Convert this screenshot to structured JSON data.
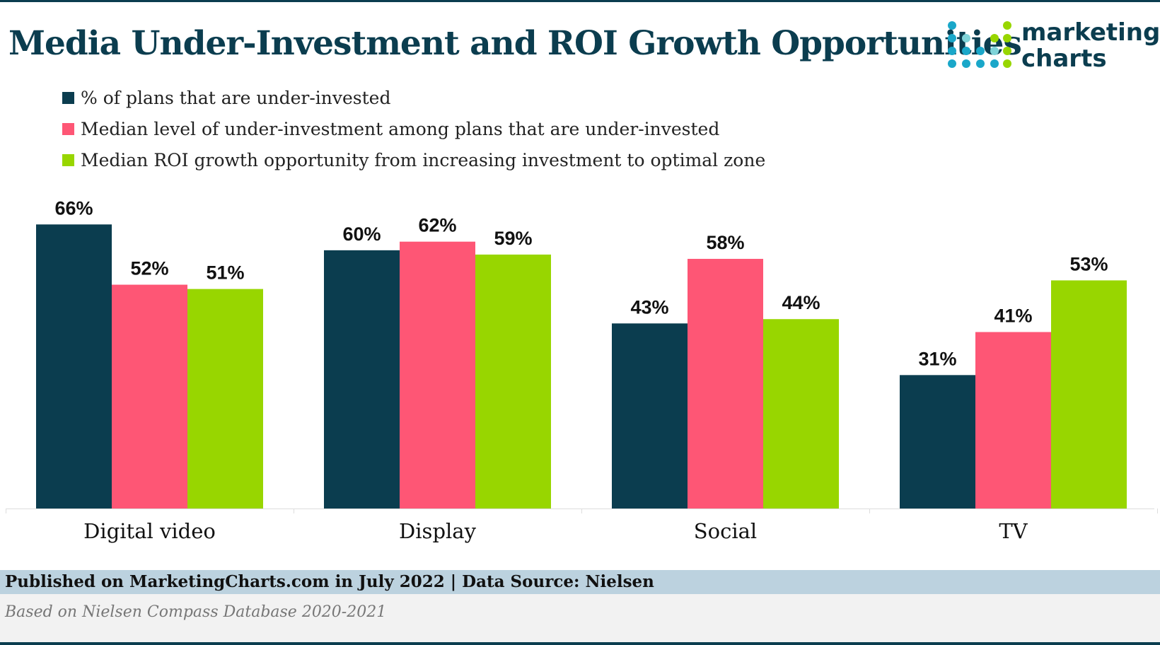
{
  "title": "Media Under-Investment and ROI Growth Opportunities",
  "logo": {
    "line1": "marketing",
    "line2": "charts",
    "icon": "dot-grid-logo-icon"
  },
  "colors": {
    "navy": "#0b3d4f",
    "pink": "#fe5675",
    "green": "#98d600",
    "footer_band": "#bcd2df"
  },
  "chart_data": {
    "type": "bar",
    "categories": [
      "Digital video",
      "Display",
      "Social",
      "TV"
    ],
    "series": [
      {
        "name": "% of plans that are under-invested",
        "color": "#0b3d4f",
        "values": [
          66,
          60,
          43,
          31
        ]
      },
      {
        "name": "Median level of under-investment among plans that are under-invested",
        "color": "#fe5675",
        "values": [
          52,
          62,
          58,
          41
        ]
      },
      {
        "name": "Median ROI growth opportunity from increasing investment to optimal zone",
        "color": "#98d600",
        "values": [
          51,
          59,
          44,
          53
        ]
      }
    ],
    "value_suffix": "%",
    "ylim": [
      0,
      70
    ],
    "grid": false,
    "legend_position": "top-left",
    "data_labels": true
  },
  "footer": {
    "published": "Published on MarketingCharts.com in July 2022 | Data Source: Nielsen",
    "note": "Based on Nielsen Compass Database 2020-2021"
  }
}
